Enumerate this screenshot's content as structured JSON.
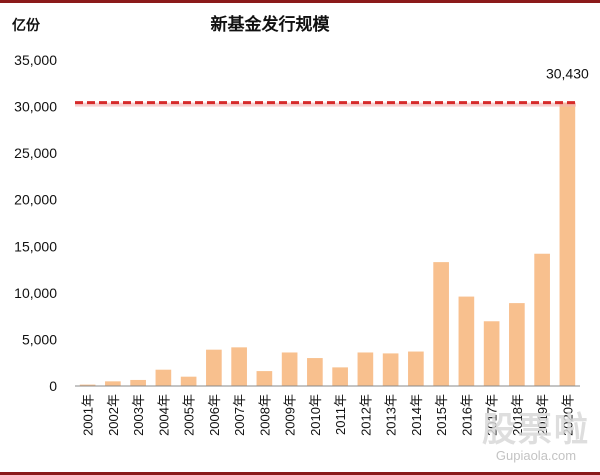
{
  "chart_data": {
    "type": "bar",
    "title": "新基金发行规模",
    "unit_label": "亿份",
    "categories": [
      "2001年",
      "2002年",
      "2003年",
      "2004年",
      "2005年",
      "2006年",
      "2007年",
      "2008年",
      "2009年",
      "2010年",
      "2011年",
      "2012年",
      "2013年",
      "2014年",
      "2015年",
      "2016年",
      "2017年",
      "2018年",
      "2019年",
      "2020年"
    ],
    "values": [
      150,
      500,
      650,
      1750,
      1000,
      3900,
      4150,
      1600,
      3600,
      3000,
      2000,
      3600,
      3500,
      3700,
      13300,
      9600,
      6950,
      8900,
      14200,
      30430
    ],
    "ylim": [
      0,
      35000
    ],
    "yticks": [
      0,
      5000,
      10000,
      15000,
      20000,
      25000,
      30000,
      35000
    ],
    "ytick_labels": [
      "0",
      "5,000",
      "10,000",
      "15,000",
      "20,000",
      "25,000",
      "30,000",
      "35,000"
    ],
    "grid": false,
    "legend": "none",
    "bar_color": "#f8c08e",
    "reference_line": {
      "value": 30430,
      "color": "#d62a2a",
      "style": "dashed"
    },
    "annotation": {
      "text": "30,430",
      "category": "2020年"
    }
  },
  "watermark": {
    "logo": "股票啦",
    "url": "Gupiaola.com"
  }
}
